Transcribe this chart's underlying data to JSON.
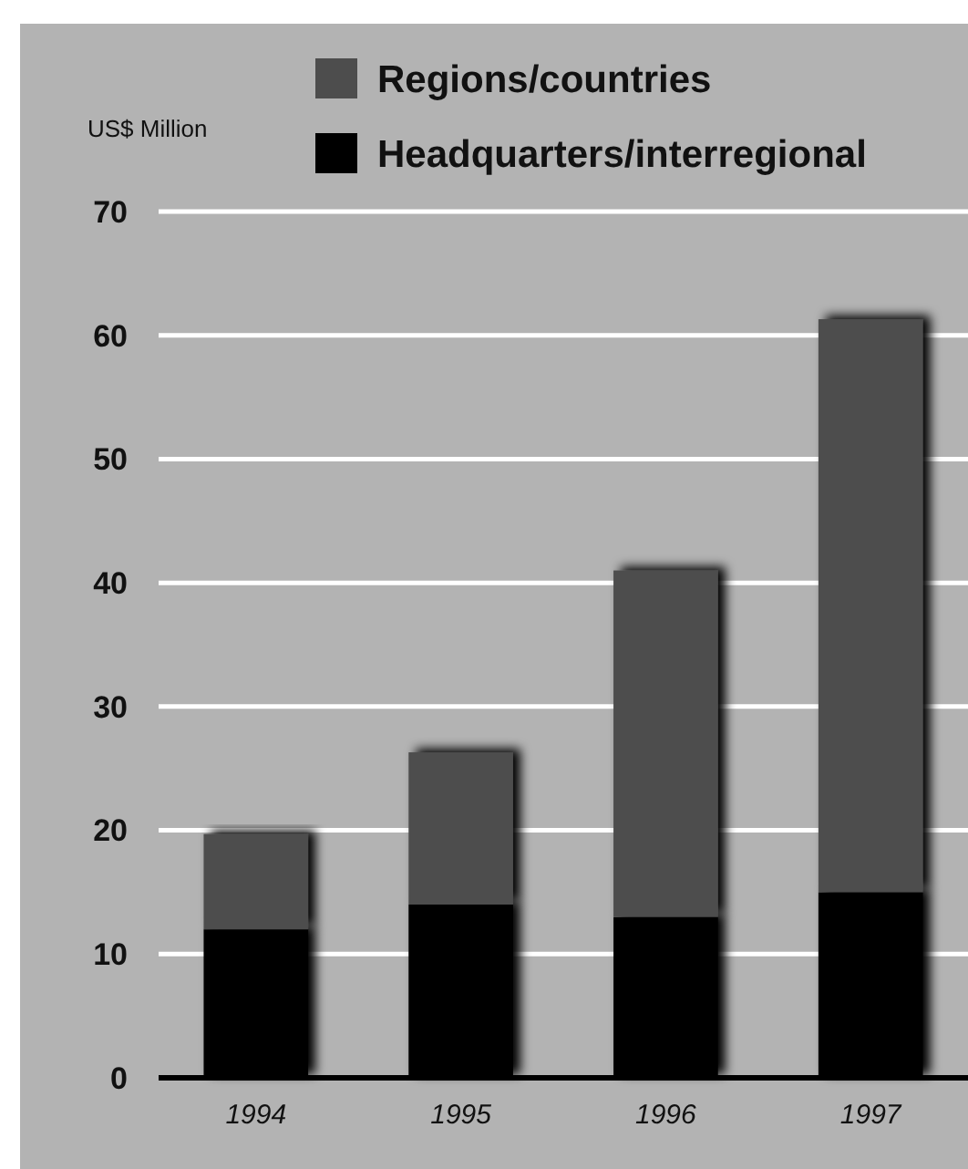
{
  "chart_data": {
    "type": "bar",
    "ylabel": "US$ Million",
    "categories": [
      "1994",
      "1995",
      "1996",
      "1997"
    ],
    "stacked": true,
    "series": [
      {
        "name": "Headquarters/interregional",
        "color": "#000000",
        "values": [
          12,
          14,
          13,
          15
        ]
      },
      {
        "name": "Regions/countries",
        "color": "#4d4d4d",
        "values": [
          7.7,
          12.3,
          28,
          46.3
        ]
      }
    ],
    "ylim": [
      0,
      70
    ],
    "yticks": [
      0,
      10,
      20,
      30,
      40,
      50,
      60,
      70
    ],
    "grid": "y",
    "legend": "top"
  }
}
